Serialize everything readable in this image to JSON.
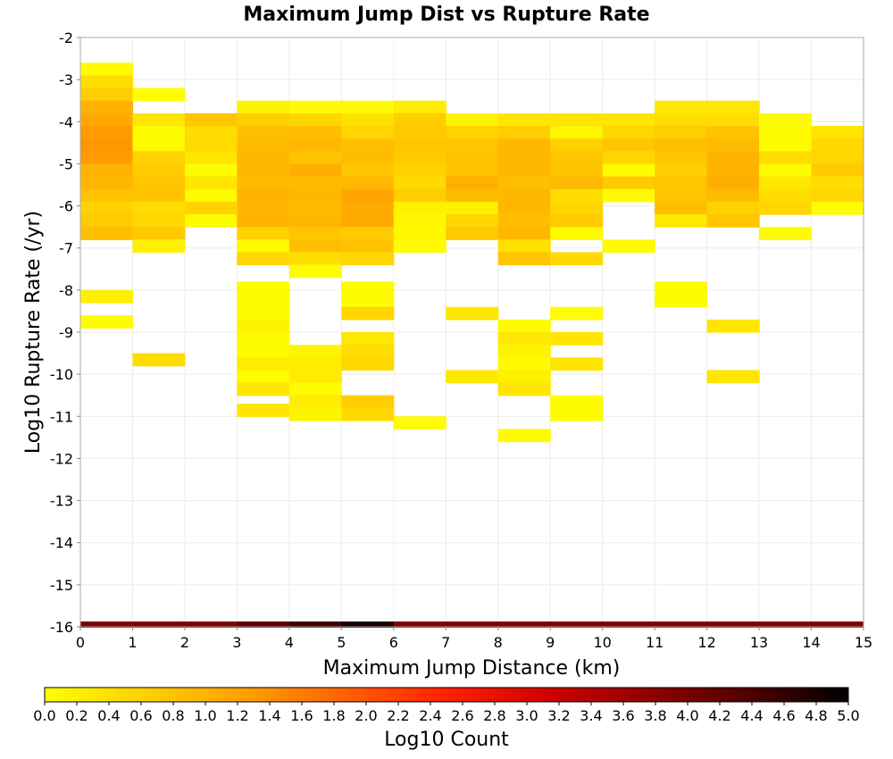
{
  "chart_data": {
    "type": "heatmap",
    "title": "Maximum Jump Dist vs Rupture Rate",
    "xlabel": "Maximum Jump Distance (km)",
    "ylabel": "Log10 Rupture Rate (/yr)",
    "xlim": [
      0,
      15
    ],
    "ylim": [
      -16,
      -2
    ],
    "x_ticks": [
      "0",
      "1",
      "2",
      "3",
      "4",
      "5",
      "6",
      "7",
      "8",
      "9",
      "10",
      "11",
      "12",
      "13",
      "14",
      "15"
    ],
    "y_ticks": [
      "-2",
      "-3",
      "-4",
      "-5",
      "-6",
      "-7",
      "-8",
      "-9",
      "-10",
      "-11",
      "-12",
      "-13",
      "-14",
      "-15",
      "-16"
    ],
    "bin_width_x": 1,
    "bin_height_y": 0.3,
    "colorbar": {
      "label": "Log10 Count",
      "range": [
        0,
        5
      ],
      "ticks": [
        "0.0",
        "0.2",
        "0.4",
        "0.6",
        "0.8",
        "1.0",
        "1.2",
        "1.4",
        "1.6",
        "1.8",
        "2.0",
        "2.2",
        "2.4",
        "2.6",
        "2.8",
        "3.0",
        "3.2",
        "3.4",
        "3.6",
        "3.8",
        "4.0",
        "4.2",
        "4.4",
        "4.6",
        "4.8",
        "5.0"
      ],
      "colors": [
        "#ffff00",
        "#ffd000",
        "#ffa000",
        "#ff6000",
        "#ff2000",
        "#d00000",
        "#900000",
        "#500000",
        "#000000"
      ]
    },
    "marginal_bar": {
      "y": -16,
      "values": [
        3.9,
        3.9,
        3.9,
        4.2,
        4.5,
        4.8,
        3.9,
        3.9,
        3.9,
        3.9,
        3.9,
        3.9,
        3.9,
        3.9,
        3.9
      ]
    },
    "cells": [
      {
        "x": 0,
        "y": -2.75,
        "v": 0.05
      },
      {
        "x": 0,
        "y": -3.05,
        "v": 0.45
      },
      {
        "x": 0,
        "y": -3.35,
        "v": 0.65
      },
      {
        "x": 0,
        "y": -3.65,
        "v": 1.0
      },
      {
        "x": 0,
        "y": -3.95,
        "v": 1.15
      },
      {
        "x": 0,
        "y": -4.25,
        "v": 1.3
      },
      {
        "x": 0,
        "y": -4.55,
        "v": 1.35
      },
      {
        "x": 0,
        "y": -4.85,
        "v": 1.3
      },
      {
        "x": 0,
        "y": -5.15,
        "v": 1.0
      },
      {
        "x": 0,
        "y": -5.45,
        "v": 0.95
      },
      {
        "x": 0,
        "y": -5.75,
        "v": 0.8
      },
      {
        "x": 0,
        "y": -6.05,
        "v": 0.6
      },
      {
        "x": 0,
        "y": -6.35,
        "v": 0.7
      },
      {
        "x": 0,
        "y": -6.65,
        "v": 0.85
      },
      {
        "x": 0,
        "y": -8.15,
        "v": 0.2
      },
      {
        "x": 0,
        "y": -8.75,
        "v": 0.05
      },
      {
        "x": 1,
        "y": -3.35,
        "v": 0.05
      },
      {
        "x": 1,
        "y": -3.95,
        "v": 0.35
      },
      {
        "x": 1,
        "y": -4.25,
        "v": 0.05
      },
      {
        "x": 1,
        "y": -4.55,
        "v": 0.05
      },
      {
        "x": 1,
        "y": -4.85,
        "v": 0.6
      },
      {
        "x": 1,
        "y": -5.15,
        "v": 0.7
      },
      {
        "x": 1,
        "y": -5.45,
        "v": 0.75
      },
      {
        "x": 1,
        "y": -5.75,
        "v": 0.8
      },
      {
        "x": 1,
        "y": -6.05,
        "v": 0.45
      },
      {
        "x": 1,
        "y": -6.35,
        "v": 0.55
      },
      {
        "x": 1,
        "y": -6.65,
        "v": 0.7
      },
      {
        "x": 1,
        "y": -6.95,
        "v": 0.2
      },
      {
        "x": 1,
        "y": -9.65,
        "v": 0.45
      },
      {
        "x": 2,
        "y": -3.95,
        "v": 0.75
      },
      {
        "x": 2,
        "y": -4.25,
        "v": 0.45
      },
      {
        "x": 2,
        "y": -4.55,
        "v": 0.5
      },
      {
        "x": 2,
        "y": -4.85,
        "v": 0.35
      },
      {
        "x": 2,
        "y": -5.15,
        "v": 0.05
      },
      {
        "x": 2,
        "y": -5.45,
        "v": 0.35
      },
      {
        "x": 2,
        "y": -5.75,
        "v": 0.05
      },
      {
        "x": 2,
        "y": -6.05,
        "v": 0.6
      },
      {
        "x": 2,
        "y": -6.35,
        "v": 0.05
      },
      {
        "x": 3,
        "y": -3.65,
        "v": 0.15
      },
      {
        "x": 3,
        "y": -3.95,
        "v": 0.65
      },
      {
        "x": 3,
        "y": -4.25,
        "v": 0.85
      },
      {
        "x": 3,
        "y": -4.55,
        "v": 0.9
      },
      {
        "x": 3,
        "y": -4.85,
        "v": 0.95
      },
      {
        "x": 3,
        "y": -5.15,
        "v": 0.95
      },
      {
        "x": 3,
        "y": -5.45,
        "v": 0.9
      },
      {
        "x": 3,
        "y": -5.75,
        "v": 1.0
      },
      {
        "x": 3,
        "y": -6.05,
        "v": 0.95
      },
      {
        "x": 3,
        "y": -6.35,
        "v": 1.0
      },
      {
        "x": 3,
        "y": -6.65,
        "v": 0.6
      },
      {
        "x": 3,
        "y": -6.95,
        "v": 0.05
      },
      {
        "x": 3,
        "y": -7.25,
        "v": 0.55
      },
      {
        "x": 3,
        "y": -7.95,
        "v": 0.05
      },
      {
        "x": 3,
        "y": -8.25,
        "v": 0.05
      },
      {
        "x": 3,
        "y": -8.55,
        "v": 0.05
      },
      {
        "x": 3,
        "y": -8.85,
        "v": 0.15
      },
      {
        "x": 3,
        "y": -9.15,
        "v": 0.05
      },
      {
        "x": 3,
        "y": -9.45,
        "v": 0.05
      },
      {
        "x": 3,
        "y": -9.75,
        "v": 0.25
      },
      {
        "x": 3,
        "y": -10.05,
        "v": 0.05
      },
      {
        "x": 3,
        "y": -10.35,
        "v": 0.35
      },
      {
        "x": 3,
        "y": -10.85,
        "v": 0.35
      },
      {
        "x": 4,
        "y": -3.65,
        "v": 0.05
      },
      {
        "x": 4,
        "y": -3.95,
        "v": 0.55
      },
      {
        "x": 4,
        "y": -4.25,
        "v": 0.85
      },
      {
        "x": 4,
        "y": -4.55,
        "v": 0.95
      },
      {
        "x": 4,
        "y": -4.85,
        "v": 0.8
      },
      {
        "x": 4,
        "y": -5.15,
        "v": 1.05
      },
      {
        "x": 4,
        "y": -5.45,
        "v": 0.9
      },
      {
        "x": 4,
        "y": -5.75,
        "v": 0.95
      },
      {
        "x": 4,
        "y": -6.05,
        "v": 0.9
      },
      {
        "x": 4,
        "y": -6.35,
        "v": 0.95
      },
      {
        "x": 4,
        "y": -6.65,
        "v": 0.75
      },
      {
        "x": 4,
        "y": -6.95,
        "v": 0.85
      },
      {
        "x": 4,
        "y": -7.25,
        "v": 0.45
      },
      {
        "x": 4,
        "y": -7.55,
        "v": 0.05
      },
      {
        "x": 4,
        "y": -9.45,
        "v": 0.15
      },
      {
        "x": 4,
        "y": -9.75,
        "v": 0.25
      },
      {
        "x": 4,
        "y": -10.05,
        "v": 0.25
      },
      {
        "x": 4,
        "y": -10.35,
        "v": 0.05
      },
      {
        "x": 4,
        "y": -10.65,
        "v": 0.25
      },
      {
        "x": 4,
        "y": -10.95,
        "v": 0.15
      },
      {
        "x": 5,
        "y": -3.65,
        "v": 0.05
      },
      {
        "x": 5,
        "y": -3.95,
        "v": 0.4
      },
      {
        "x": 5,
        "y": -4.25,
        "v": 0.55
      },
      {
        "x": 5,
        "y": -4.55,
        "v": 0.85
      },
      {
        "x": 5,
        "y": -4.85,
        "v": 0.9
      },
      {
        "x": 5,
        "y": -5.15,
        "v": 0.75
      },
      {
        "x": 5,
        "y": -5.45,
        "v": 0.95
      },
      {
        "x": 5,
        "y": -5.75,
        "v": 1.2
      },
      {
        "x": 5,
        "y": -6.05,
        "v": 1.1
      },
      {
        "x": 5,
        "y": -6.35,
        "v": 1.15
      },
      {
        "x": 5,
        "y": -6.65,
        "v": 0.7
      },
      {
        "x": 5,
        "y": -6.95,
        "v": 0.8
      },
      {
        "x": 5,
        "y": -7.25,
        "v": 0.55
      },
      {
        "x": 5,
        "y": -7.95,
        "v": 0.05
      },
      {
        "x": 5,
        "y": -8.25,
        "v": 0.05
      },
      {
        "x": 5,
        "y": -8.55,
        "v": 0.55
      },
      {
        "x": 5,
        "y": -9.15,
        "v": 0.3
      },
      {
        "x": 5,
        "y": -9.45,
        "v": 0.45
      },
      {
        "x": 5,
        "y": -9.75,
        "v": 0.55
      },
      {
        "x": 5,
        "y": -10.65,
        "v": 0.65
      },
      {
        "x": 5,
        "y": -10.95,
        "v": 0.5
      },
      {
        "x": 6,
        "y": -3.65,
        "v": 0.25
      },
      {
        "x": 6,
        "y": -3.95,
        "v": 0.65
      },
      {
        "x": 6,
        "y": -4.25,
        "v": 0.7
      },
      {
        "x": 6,
        "y": -4.55,
        "v": 0.75
      },
      {
        "x": 6,
        "y": -4.85,
        "v": 0.7
      },
      {
        "x": 6,
        "y": -5.15,
        "v": 0.6
      },
      {
        "x": 6,
        "y": -5.45,
        "v": 0.5
      },
      {
        "x": 6,
        "y": -5.75,
        "v": 0.65
      },
      {
        "x": 6,
        "y": -6.05,
        "v": 0.2
      },
      {
        "x": 6,
        "y": -6.35,
        "v": 0.1
      },
      {
        "x": 6,
        "y": -6.65,
        "v": 0.1
      },
      {
        "x": 6,
        "y": -6.95,
        "v": 0.05
      },
      {
        "x": 6,
        "y": -11.15,
        "v": 0.05
      },
      {
        "x": 7,
        "y": -3.95,
        "v": 0.15
      },
      {
        "x": 7,
        "y": -4.25,
        "v": 0.6
      },
      {
        "x": 7,
        "y": -4.55,
        "v": 0.75
      },
      {
        "x": 7,
        "y": -4.85,
        "v": 0.8
      },
      {
        "x": 7,
        "y": -5.15,
        "v": 0.8
      },
      {
        "x": 7,
        "y": -5.45,
        "v": 1.05
      },
      {
        "x": 7,
        "y": -5.75,
        "v": 0.9
      },
      {
        "x": 7,
        "y": -6.05,
        "v": 0.2
      },
      {
        "x": 7,
        "y": -6.35,
        "v": 0.55
      },
      {
        "x": 7,
        "y": -6.65,
        "v": 0.7
      },
      {
        "x": 7,
        "y": -8.55,
        "v": 0.35
      },
      {
        "x": 7,
        "y": -10.05,
        "v": 0.3
      },
      {
        "x": 8,
        "y": -3.95,
        "v": 0.35
      },
      {
        "x": 8,
        "y": -4.25,
        "v": 0.65
      },
      {
        "x": 8,
        "y": -4.55,
        "v": 0.95
      },
      {
        "x": 8,
        "y": -4.85,
        "v": 0.95
      },
      {
        "x": 8,
        "y": -5.15,
        "v": 0.95
      },
      {
        "x": 8,
        "y": -5.45,
        "v": 0.85
      },
      {
        "x": 8,
        "y": -5.75,
        "v": 0.95
      },
      {
        "x": 8,
        "y": -6.05,
        "v": 0.95
      },
      {
        "x": 8,
        "y": -6.35,
        "v": 0.85
      },
      {
        "x": 8,
        "y": -6.65,
        "v": 0.95
      },
      {
        "x": 8,
        "y": -6.95,
        "v": 0.4
      },
      {
        "x": 8,
        "y": -7.25,
        "v": 0.75
      },
      {
        "x": 8,
        "y": -8.85,
        "v": 0.05
      },
      {
        "x": 8,
        "y": -9.15,
        "v": 0.3
      },
      {
        "x": 8,
        "y": -9.45,
        "v": 0.15
      },
      {
        "x": 8,
        "y": -9.75,
        "v": 0.05
      },
      {
        "x": 8,
        "y": -10.05,
        "v": 0.2
      },
      {
        "x": 8,
        "y": -10.35,
        "v": 0.35
      },
      {
        "x": 8,
        "y": -11.45,
        "v": 0.05
      },
      {
        "x": 9,
        "y": -3.95,
        "v": 0.35
      },
      {
        "x": 9,
        "y": -4.25,
        "v": 0.1
      },
      {
        "x": 9,
        "y": -4.55,
        "v": 0.6
      },
      {
        "x": 9,
        "y": -4.85,
        "v": 0.75
      },
      {
        "x": 9,
        "y": -5.15,
        "v": 0.8
      },
      {
        "x": 9,
        "y": -5.45,
        "v": 0.95
      },
      {
        "x": 9,
        "y": -5.75,
        "v": 0.45
      },
      {
        "x": 9,
        "y": -6.05,
        "v": 0.55
      },
      {
        "x": 9,
        "y": -6.35,
        "v": 0.7
      },
      {
        "x": 9,
        "y": -6.65,
        "v": 0.05
      },
      {
        "x": 9,
        "y": -7.25,
        "v": 0.5
      },
      {
        "x": 9,
        "y": -8.55,
        "v": 0.05
      },
      {
        "x": 9,
        "y": -9.15,
        "v": 0.35
      },
      {
        "x": 9,
        "y": -9.75,
        "v": 0.35
      },
      {
        "x": 9,
        "y": -10.65,
        "v": 0.05
      },
      {
        "x": 9,
        "y": -10.95,
        "v": 0.05
      },
      {
        "x": 10,
        "y": -3.95,
        "v": 0.35
      },
      {
        "x": 10,
        "y": -4.25,
        "v": 0.55
      },
      {
        "x": 10,
        "y": -4.55,
        "v": 0.75
      },
      {
        "x": 10,
        "y": -4.85,
        "v": 0.55
      },
      {
        "x": 10,
        "y": -5.15,
        "v": 0.05
      },
      {
        "x": 10,
        "y": -5.45,
        "v": 0.7
      },
      {
        "x": 10,
        "y": -5.75,
        "v": 0.05
      },
      {
        "x": 10,
        "y": -6.95,
        "v": 0.05
      },
      {
        "x": 11,
        "y": -3.65,
        "v": 0.3
      },
      {
        "x": 11,
        "y": -3.95,
        "v": 0.45
      },
      {
        "x": 11,
        "y": -4.25,
        "v": 0.65
      },
      {
        "x": 11,
        "y": -4.55,
        "v": 0.85
      },
      {
        "x": 11,
        "y": -4.85,
        "v": 0.75
      },
      {
        "x": 11,
        "y": -5.15,
        "v": 0.65
      },
      {
        "x": 11,
        "y": -5.45,
        "v": 0.75
      },
      {
        "x": 11,
        "y": -5.75,
        "v": 0.75
      },
      {
        "x": 11,
        "y": -6.05,
        "v": 0.85
      },
      {
        "x": 11,
        "y": -6.35,
        "v": 0.3
      },
      {
        "x": 11,
        "y": -7.95,
        "v": 0.05
      },
      {
        "x": 11,
        "y": -8.25,
        "v": 0.05
      },
      {
        "x": 12,
        "y": -3.65,
        "v": 0.3
      },
      {
        "x": 12,
        "y": -3.95,
        "v": 0.45
      },
      {
        "x": 12,
        "y": -4.25,
        "v": 0.8
      },
      {
        "x": 12,
        "y": -4.55,
        "v": 0.9
      },
      {
        "x": 12,
        "y": -4.85,
        "v": 1.0
      },
      {
        "x": 12,
        "y": -5.15,
        "v": 1.0
      },
      {
        "x": 12,
        "y": -5.45,
        "v": 1.05
      },
      {
        "x": 12,
        "y": -5.75,
        "v": 0.9
      },
      {
        "x": 12,
        "y": -6.05,
        "v": 0.6
      },
      {
        "x": 12,
        "y": -6.35,
        "v": 0.75
      },
      {
        "x": 12,
        "y": -8.85,
        "v": 0.35
      },
      {
        "x": 12,
        "y": -10.05,
        "v": 0.35
      },
      {
        "x": 13,
        "y": -3.95,
        "v": 0.05
      },
      {
        "x": 13,
        "y": -4.25,
        "v": 0.05
      },
      {
        "x": 13,
        "y": -4.55,
        "v": 0.05
      },
      {
        "x": 13,
        "y": -4.85,
        "v": 0.45
      },
      {
        "x": 13,
        "y": -5.15,
        "v": 0.05
      },
      {
        "x": 13,
        "y": -5.45,
        "v": 0.3
      },
      {
        "x": 13,
        "y": -5.75,
        "v": 0.45
      },
      {
        "x": 13,
        "y": -6.05,
        "v": 0.55
      },
      {
        "x": 13,
        "y": -6.65,
        "v": 0.05
      },
      {
        "x": 14,
        "y": -4.25,
        "v": 0.35
      },
      {
        "x": 14,
        "y": -4.55,
        "v": 0.5
      },
      {
        "x": 14,
        "y": -4.85,
        "v": 0.55
      },
      {
        "x": 14,
        "y": -5.15,
        "v": 0.7
      },
      {
        "x": 14,
        "y": -5.45,
        "v": 0.45
      },
      {
        "x": 14,
        "y": -5.75,
        "v": 0.55
      },
      {
        "x": 14,
        "y": -6.05,
        "v": 0.05
      }
    ]
  }
}
